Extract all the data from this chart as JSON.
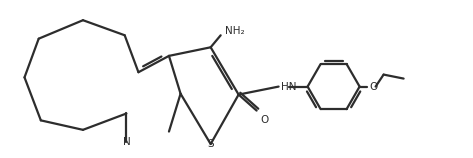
{
  "bg_color": "#ffffff",
  "line_color": "#2d2d2d",
  "line_width": 1.6,
  "figsize": [
    4.73,
    1.58
  ],
  "dpi": 100,
  "N_label": "N",
  "S_label": "S",
  "O_label": "O",
  "HN_label": "HN",
  "NH2_label": "NH₂",
  "font_size": 7.5
}
